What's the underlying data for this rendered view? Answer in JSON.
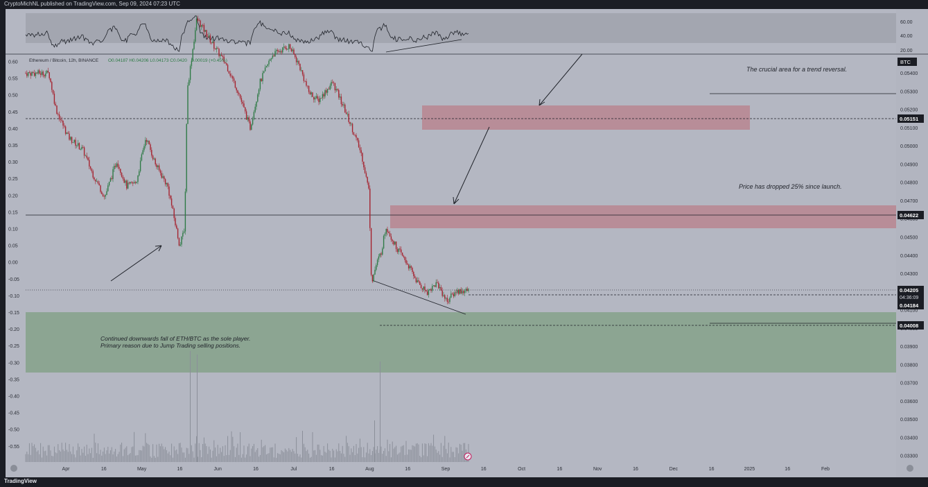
{
  "header": {
    "publisher": "CryptoMichNL published on TradingView.com, Sep 09, 2024 07:23 UTC"
  },
  "legend": {
    "symbol": "Ethereum / Bitcoin, 12h, BINANCE",
    "ohlc": "O0.04187 H0.04206 L0.04173 C0.0420",
    "change": "0.00019 (+0.45%)"
  },
  "currency": "BTC",
  "annotations": {
    "crucial": "The crucial area for a trend reversal.",
    "dropped": "Price has dropped 25% since launch.",
    "continued_line1": "Continued downwards fall of ETH/BTC as the sole player.",
    "continued_line2": "Primary reason due to Jump Trading selling positions."
  },
  "price_tags": {
    "level_upper": "0.05151",
    "level_mid": "0.04622",
    "last_price": "0.04205",
    "countdown": "04:36:09",
    "prev_close": "0.04184",
    "level_low": "0.04008"
  },
  "footer": {
    "brand": "TradingView"
  },
  "colors": {
    "background": "#b4b7c2",
    "resistance_zone": "#b88690",
    "support_zone": "#8aa38f",
    "up_candle": "#2e7a45",
    "down_candle": "#a5222e",
    "oscillator_band": "#a3a6b0"
  },
  "chart_data": {
    "type": "candlestick",
    "x_tick_labels": [
      "Apr",
      "16",
      "May",
      "16",
      "Jun",
      "16",
      "Jul",
      "16",
      "Aug",
      "16",
      "Sep",
      "16",
      "Oct",
      "16",
      "Nov",
      "16",
      "Dec",
      "16",
      "2025",
      "16",
      "Feb"
    ],
    "right_axis_labels": [
      "0.05400",
      "0.05300",
      "0.05200",
      "0.05100",
      "0.05000",
      "0.04900",
      "0.04800",
      "0.04700",
      "0.04600",
      "0.04500",
      "0.04400",
      "0.04300",
      "0.04100",
      "0.04000",
      "0.03900",
      "0.03800",
      "0.03700",
      "0.03600",
      "0.03500",
      "0.03400",
      "0.03300"
    ],
    "left_axis_labels": [
      "0.60",
      "0.55",
      "0.50",
      "0.45",
      "0.40",
      "0.35",
      "0.30",
      "0.25",
      "0.20",
      "0.15",
      "0.10",
      "0.05",
      "0.00",
      "-0.05",
      "-0.10",
      "-0.15",
      "-0.20",
      "-0.25",
      "-0.30",
      "-0.35",
      "-0.40",
      "-0.45",
      "-0.50",
      "-0.55"
    ],
    "oscillator_axis_labels": [
      "60.00",
      "40.00",
      "20.00"
    ],
    "price_path": [
      [
        "2024-03-25",
        0.054
      ],
      [
        "2024-03-28",
        0.052
      ],
      [
        "2024-04-02",
        0.0505
      ],
      [
        "2024-04-08",
        0.0498
      ],
      [
        "2024-04-12",
        0.0485
      ],
      [
        "2024-04-17",
        0.0472
      ],
      [
        "2024-04-22",
        0.0492
      ],
      [
        "2024-04-26",
        0.0478
      ],
      [
        "2024-04-30",
        0.048
      ],
      [
        "2024-05-04",
        0.0505
      ],
      [
        "2024-05-08",
        0.049
      ],
      [
        "2024-05-13",
        0.0478
      ],
      [
        "2024-05-18",
        0.0445
      ],
      [
        "2024-05-20",
        0.0456
      ],
      [
        "2024-05-21",
        0.053
      ],
      [
        "2024-05-25",
        0.057
      ],
      [
        "2024-06-01",
        0.0555
      ],
      [
        "2024-06-06",
        0.0545
      ],
      [
        "2024-06-11",
        0.053
      ],
      [
        "2024-06-16",
        0.051
      ],
      [
        "2024-06-20",
        0.0535
      ],
      [
        "2024-06-25",
        0.055
      ],
      [
        "2024-07-02",
        0.0555
      ],
      [
        "2024-07-06",
        0.0545
      ],
      [
        "2024-07-10",
        0.053
      ],
      [
        "2024-07-14",
        0.0525
      ],
      [
        "2024-07-20",
        0.0535
      ],
      [
        "2024-07-25",
        0.052
      ],
      [
        "2024-07-28",
        0.051
      ],
      [
        "2024-08-01",
        0.0495
      ],
      [
        "2024-08-04",
        0.0475
      ],
      [
        "2024-08-05",
        0.0425
      ],
      [
        "2024-08-07",
        0.0435
      ],
      [
        "2024-08-09",
        0.0442
      ],
      [
        "2024-08-11",
        0.0456
      ],
      [
        "2024-08-15",
        0.0445
      ],
      [
        "2024-08-20",
        0.0435
      ],
      [
        "2024-08-24",
        0.0425
      ],
      [
        "2024-08-28",
        0.042
      ],
      [
        "2024-09-01",
        0.0425
      ],
      [
        "2024-09-05",
        0.0415
      ],
      [
        "2024-09-09",
        0.04205
      ]
    ],
    "levels": [
      {
        "price": 0.05151,
        "style": "dashed"
      },
      {
        "price": 0.04622,
        "style": "solid"
      },
      {
        "price": 0.04184,
        "style": "dashed"
      },
      {
        "price": 0.04008,
        "style": "dashed"
      }
    ],
    "zones": [
      {
        "from": "2024-08-28",
        "to": "2025-01-01",
        "low": 0.051,
        "high": 0.0523,
        "color": "resistance"
      },
      {
        "from": "2024-08-09",
        "to": "2025-03-01",
        "low": 0.0455,
        "high": 0.0467,
        "color": "resistance"
      },
      {
        "from": "2024-03-25",
        "to": "2025-03-01",
        "low": 0.0375,
        "high": 0.0408,
        "color": "support"
      }
    ]
  }
}
